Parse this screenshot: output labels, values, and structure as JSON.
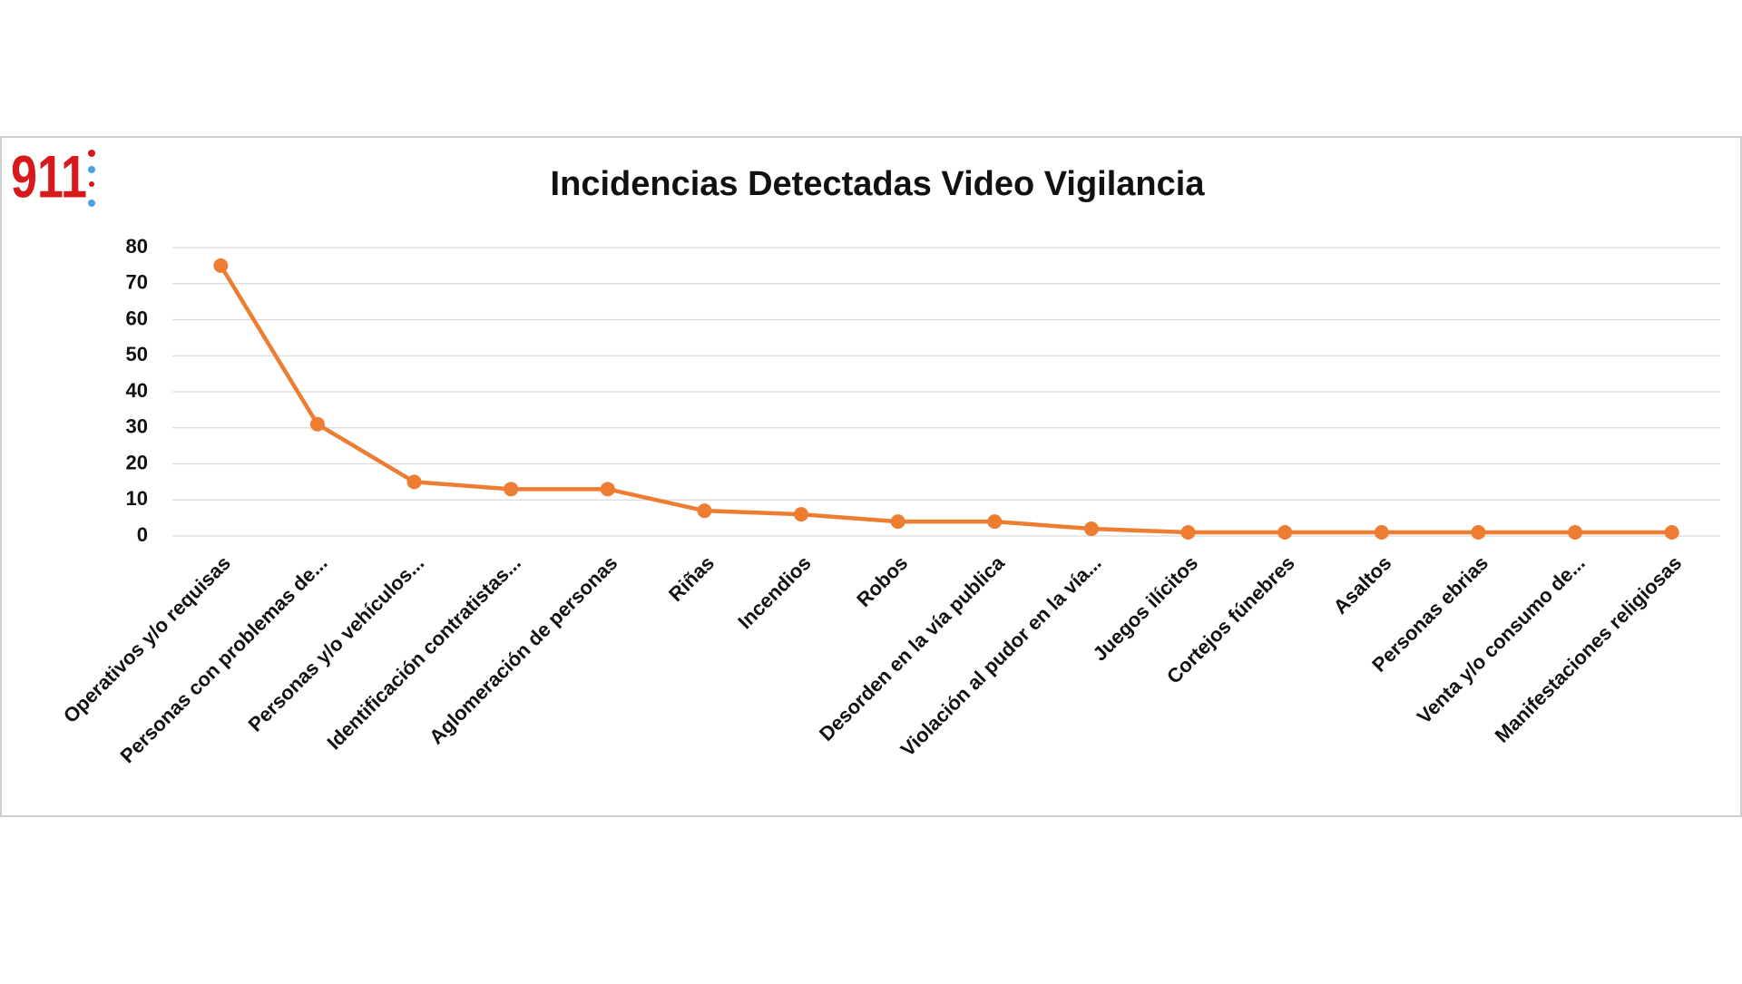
{
  "logo": "911",
  "chart_data": {
    "type": "line",
    "title": "Incidencias Detectadas Video Vigilancia",
    "categories": [
      "Operativos y/o requisas",
      "Personas con problemas de...",
      "Personas y/o vehículos...",
      "Identificación contratistas...",
      "Aglomeración de personas",
      "Riñas",
      "Incendios",
      "Robos",
      "Desorden en la vía publica",
      "Violación al pudor en la vía...",
      "Juegos ilícitos",
      "Cortejos fúnebres",
      "Asaltos",
      "Personas ebrias",
      "Venta y/o consumo de...",
      "Manifestaciones religiosas"
    ],
    "values": [
      75,
      31,
      15,
      13,
      13,
      7,
      6,
      4,
      4,
      2,
      1,
      1,
      1,
      1,
      1,
      1
    ],
    "color": "#ed7d31",
    "ylim": [
      0,
      80
    ],
    "yticks": [
      0,
      10,
      20,
      30,
      40,
      50,
      60,
      70,
      80
    ],
    "grid": true
  }
}
